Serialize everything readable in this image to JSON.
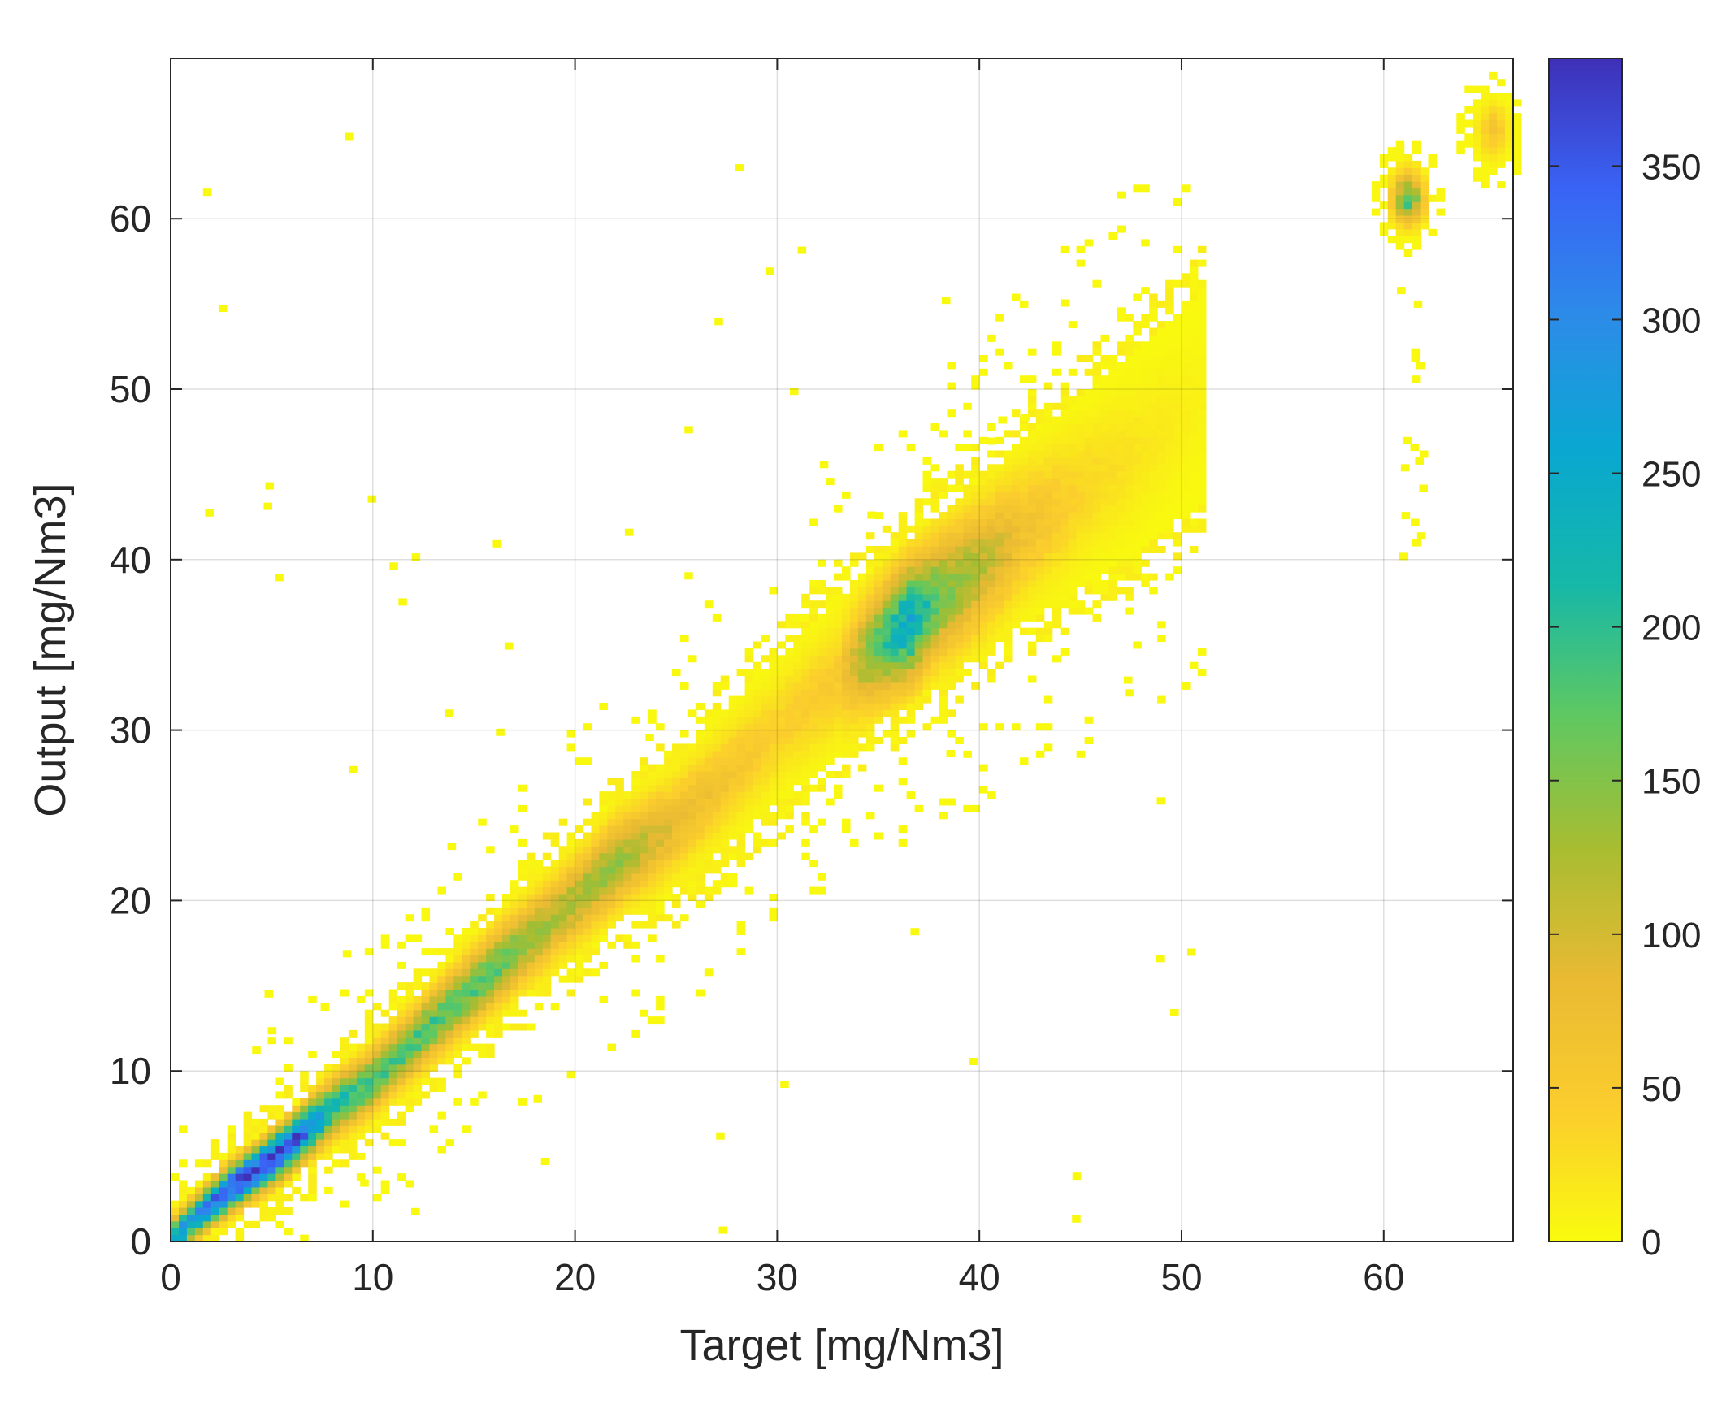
{
  "chart_data": {
    "type": "heatmap",
    "title": "",
    "xlabel": "Target [mg/Nm3]",
    "ylabel": "Output [mg/Nm3]",
    "xlim": [
      0,
      66.4
    ],
    "ylim": [
      0,
      69.4
    ],
    "xticks": [
      "0",
      "10",
      "20",
      "30",
      "40",
      "50",
      "60"
    ],
    "yticks": [
      "0",
      "10",
      "20",
      "30",
      "40",
      "50",
      "60"
    ],
    "grid": true,
    "colormap": "parula",
    "colorbar": {
      "range": [
        0,
        385
      ],
      "ticks": [
        "0",
        "50",
        "100",
        "150",
        "200",
        "250",
        "300",
        "350"
      ],
      "colors": [
        "#f9fb0e",
        "#fbcd2d",
        "#e9ba33",
        "#a7bd31",
        "#5fc861",
        "#16b8a8",
        "#09a8d0",
        "#2b8de8",
        "#3964f5",
        "#3e30b7"
      ]
    },
    "bin_width": 0.4,
    "ridge": {
      "description_points": [
        {
          "x": 0.0,
          "y": 0.0,
          "count": 300
        },
        {
          "x": 1.0,
          "y": 1.2,
          "count": 260
        },
        {
          "x": 3.0,
          "y": 3.2,
          "count": 375
        },
        {
          "x": 5.0,
          "y": 4.8,
          "count": 380
        },
        {
          "x": 6.5,
          "y": 6.3,
          "count": 340
        },
        {
          "x": 8.0,
          "y": 7.8,
          "count": 220
        },
        {
          "x": 10.0,
          "y": 9.5,
          "count": 190
        },
        {
          "x": 13.0,
          "y": 12.8,
          "count": 180
        },
        {
          "x": 16.0,
          "y": 16.0,
          "count": 175
        },
        {
          "x": 19.0,
          "y": 19.0,
          "count": 120
        },
        {
          "x": 22.0,
          "y": 22.2,
          "count": 140
        },
        {
          "x": 25.0,
          "y": 24.5,
          "count": 80
        },
        {
          "x": 30.0,
          "y": 30.0,
          "count": 40
        },
        {
          "x": 33.0,
          "y": 33.0,
          "count": 50
        },
        {
          "x": 35.5,
          "y": 35.5,
          "count": 200
        },
        {
          "x": 36.5,
          "y": 36.3,
          "count": 260
        },
        {
          "x": 38.0,
          "y": 37.8,
          "count": 160
        },
        {
          "x": 40.0,
          "y": 39.5,
          "count": 120
        },
        {
          "x": 42.0,
          "y": 41.5,
          "count": 70
        },
        {
          "x": 45.0,
          "y": 44.0,
          "count": 35
        },
        {
          "x": 48.0,
          "y": 46.5,
          "count": 20
        },
        {
          "x": 51.0,
          "y": 49.5,
          "count": 8
        }
      ],
      "clusters": [
        {
          "x": 61.0,
          "y": 61.0,
          "peak": 180
        },
        {
          "x": 65.2,
          "y": 65.0,
          "peak": 60
        }
      ]
    }
  }
}
